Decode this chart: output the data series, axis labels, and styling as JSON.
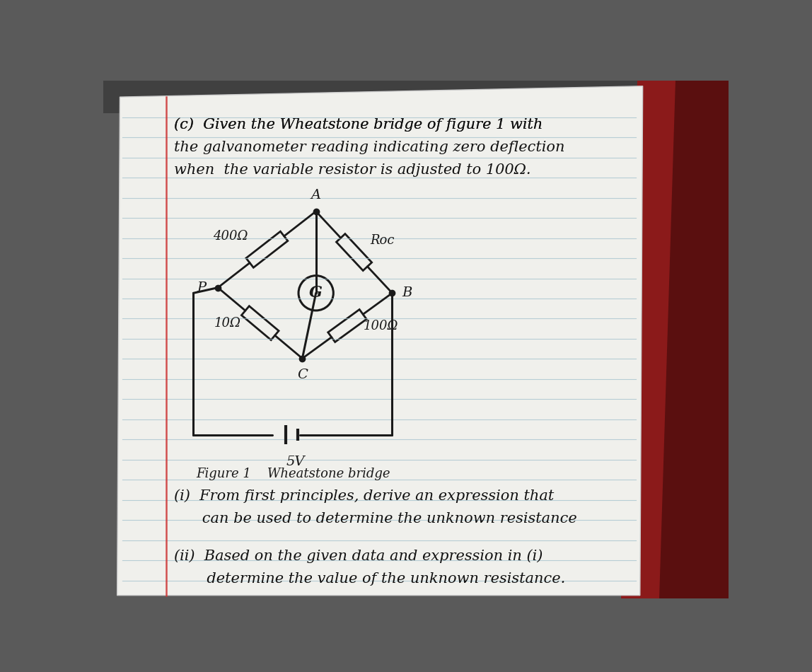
{
  "bg_top_color": "#3a3a3a",
  "bg_right_color": "#8b2020",
  "page_color": "#e8e8e8",
  "line_color": "#b0c8d0",
  "margin_color": "#cc4444",
  "circuit_color": "#1a1a1a",
  "text_color": "#1a1a1a",
  "title_line1": "(c)  Given the Wheatstone bridge of figure 1 with",
  "title_line2": "the galvanometer reading indicating zero deflection",
  "title_line3": "when  the variable resistor is adjusted to 100Ω.",
  "R400_label": "400Ω",
  "Roc_label": "Roc",
  "R10_label": "10Ω",
  "R100_label": "100Ω",
  "V_label": "5V",
  "label_A": "A",
  "label_P": "P",
  "label_B": "B",
  "label_C": "C",
  "label_G": "G",
  "fig_caption": "Figure 1    Wheatstone bridge",
  "part_i_1": "(i)  From first principles, derive an expression that",
  "part_i_2": "      can be used to determine the unknown resistance",
  "part_ii_1": "(ii)  Based on the given data and expression in (i)",
  "part_ii_2": "       determine the value of the unknown resistance."
}
